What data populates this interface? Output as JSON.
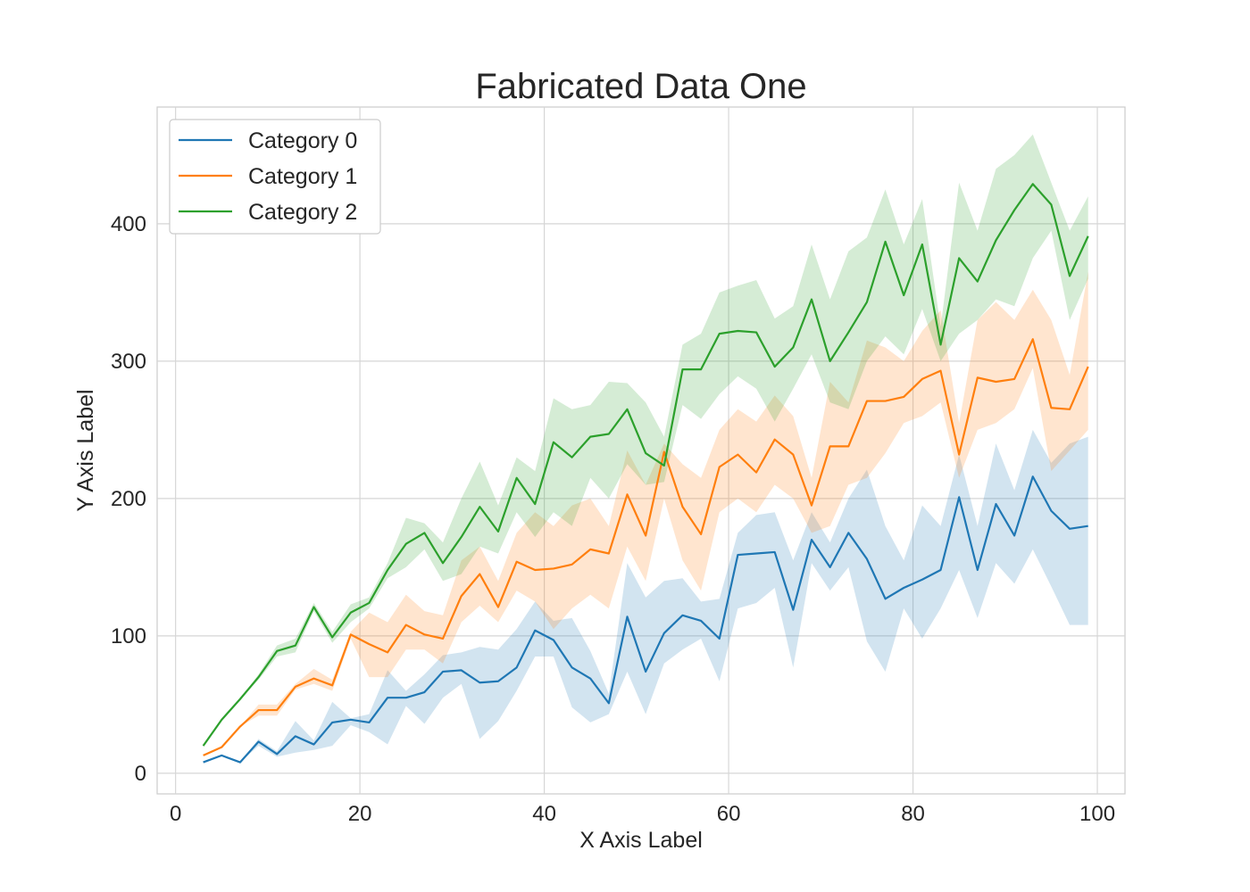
{
  "chart_data": {
    "type": "line",
    "title": "Fabricated Data One",
    "xlabel": "X Axis Label",
    "ylabel": "Y Axis Label",
    "xlim": [
      -2,
      103
    ],
    "ylim": [
      -15,
      485
    ],
    "xticks": [
      0,
      20,
      40,
      60,
      80,
      100
    ],
    "yticks": [
      0,
      100,
      200,
      300,
      400
    ],
    "grid": true,
    "legend_position": "top-left",
    "x": [
      3,
      5,
      7,
      9,
      11,
      13,
      15,
      17,
      19,
      21,
      23,
      25,
      27,
      29,
      31,
      33,
      35,
      37,
      39,
      41,
      43,
      45,
      47,
      49,
      51,
      53,
      55,
      57,
      59,
      61,
      63,
      65,
      67,
      69,
      71,
      73,
      75,
      77,
      79,
      81,
      83,
      85,
      87,
      89,
      91,
      93,
      95,
      97,
      99
    ],
    "series": [
      {
        "name": "Category 0",
        "color": "#1f77b4",
        "values": [
          8,
          13,
          8,
          23,
          14,
          27,
          21,
          37,
          39,
          37,
          55,
          55,
          59,
          74,
          75,
          66,
          67,
          77,
          104,
          97,
          77,
          69,
          51,
          114,
          74,
          102,
          115,
          111,
          98,
          159,
          160,
          161,
          119,
          170,
          150,
          175,
          156,
          127,
          135,
          141,
          148,
          201,
          148,
          196,
          173,
          216,
          191,
          178,
          180
        ],
        "lower": [
          8,
          13,
          8,
          20,
          12,
          15,
          17,
          20,
          35,
          30,
          21,
          49,
          36,
          55,
          65,
          25,
          38,
          60,
          85,
          85,
          48,
          37,
          43,
          74,
          43,
          80,
          90,
          98,
          67,
          120,
          124,
          135,
          77,
          153,
          133,
          150,
          96,
          74,
          120,
          98,
          120,
          148,
          113,
          153,
          138,
          163,
          136,
          108,
          108
        ],
        "upper": [
          8,
          13,
          8,
          25,
          16,
          38,
          24,
          52,
          40,
          43,
          75,
          60,
          72,
          86,
          88,
          92,
          90,
          105,
          125,
          111,
          113,
          89,
          58,
          153,
          128,
          140,
          142,
          125,
          127,
          175,
          188,
          190,
          155,
          190,
          168,
          200,
          221,
          180,
          155,
          195,
          180,
          232,
          180,
          240,
          206,
          250,
          226,
          240,
          245
        ]
      },
      {
        "name": "Category 1",
        "color": "#ff7f0e",
        "values": [
          13,
          19,
          34,
          46,
          46,
          63,
          69,
          64,
          101,
          94,
          88,
          108,
          101,
          98,
          129,
          145,
          121,
          154,
          148,
          149,
          152,
          163,
          160,
          203,
          173,
          234,
          194,
          174,
          223,
          232,
          219,
          243,
          232,
          195,
          238,
          238,
          271,
          271,
          274,
          287,
          293,
          232,
          288,
          285,
          287,
          316,
          266,
          265,
          296
        ],
        "lower": [
          13,
          19,
          34,
          42,
          42,
          61,
          65,
          60,
          98,
          70,
          70,
          90,
          90,
          80,
          110,
          122,
          110,
          133,
          125,
          105,
          120,
          130,
          120,
          165,
          140,
          200,
          155,
          133,
          190,
          200,
          190,
          210,
          200,
          175,
          180,
          210,
          215,
          233,
          255,
          260,
          270,
          215,
          250,
          255,
          265,
          295,
          220,
          235,
          250
        ],
        "upper": [
          13,
          19,
          34,
          50,
          50,
          65,
          76,
          68,
          103,
          117,
          110,
          130,
          118,
          115,
          155,
          165,
          140,
          175,
          190,
          180,
          195,
          200,
          180,
          235,
          210,
          240,
          225,
          215,
          250,
          265,
          256,
          275,
          260,
          215,
          285,
          270,
          315,
          310,
          300,
          322,
          337,
          255,
          330,
          343,
          330,
          352,
          330,
          290,
          365
        ]
      },
      {
        "name": "Category 2",
        "color": "#2ca02c",
        "values": [
          20,
          39,
          54,
          70,
          89,
          93,
          121,
          99,
          117,
          124,
          148,
          167,
          175,
          153,
          172,
          194,
          176,
          215,
          196,
          241,
          230,
          245,
          247,
          265,
          233,
          224,
          294,
          294,
          320,
          322,
          321,
          296,
          310,
          345,
          300,
          321,
          343,
          387,
          348,
          385,
          312,
          375,
          358,
          388,
          410,
          429,
          414,
          362,
          391
        ],
        "lower": [
          20,
          39,
          54,
          68,
          85,
          88,
          118,
          95,
          110,
          120,
          142,
          150,
          163,
          140,
          145,
          165,
          160,
          190,
          172,
          190,
          180,
          215,
          200,
          225,
          210,
          212,
          268,
          258,
          276,
          289,
          280,
          256,
          280,
          305,
          270,
          265,
          300,
          318,
          305,
          338,
          300,
          320,
          330,
          345,
          340,
          375,
          395,
          330,
          360
        ],
        "upper": [
          20,
          39,
          54,
          72,
          93,
          98,
          124,
          103,
          123,
          128,
          153,
          186,
          182,
          168,
          200,
          227,
          195,
          230,
          220,
          273,
          265,
          268,
          285,
          284,
          270,
          245,
          312,
          320,
          350,
          355,
          359,
          331,
          340,
          385,
          345,
          380,
          390,
          425,
          385,
          418,
          325,
          430,
          395,
          440,
          450,
          465,
          430,
          395,
          420
        ]
      }
    ]
  }
}
